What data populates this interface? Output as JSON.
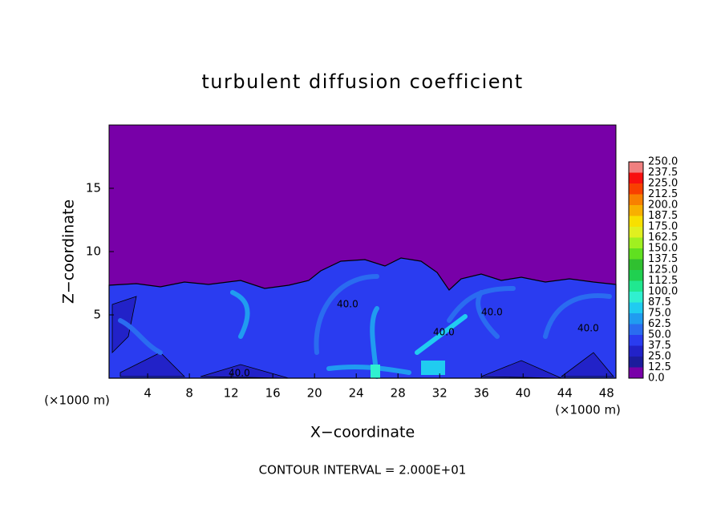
{
  "chart_data": {
    "type": "contour",
    "title": "turbulent diffusion coefficient",
    "xlabel": "X−coordinate",
    "ylabel": "Z−coordinate",
    "xunit": "(×1000 m)",
    "xunit_right": "(×1000 m)",
    "footer": "CONTOUR INTERVAL = 2.000E+01",
    "contour_labels": [
      "40.0",
      "40.0",
      "40.0",
      "40.0",
      "40.0"
    ],
    "xlim": [
      0.3,
      48.9
    ],
    "ylim": [
      0,
      20
    ],
    "xticks": [
      4,
      8,
      12,
      16,
      20,
      24,
      28,
      32,
      36,
      40,
      44,
      48
    ],
    "yticks": [
      5,
      10,
      15
    ],
    "colorbar": {
      "levels": [
        {
          "value": 0,
          "label": "0.0"
        },
        {
          "value": 12.5,
          "label": "12.5"
        },
        {
          "value": 25,
          "label": "25.0"
        },
        {
          "value": 37.5,
          "label": "37.5"
        },
        {
          "value": 50,
          "label": "50.0"
        },
        {
          "value": 62.5,
          "label": "62.5"
        },
        {
          "value": 75,
          "label": "75.0"
        },
        {
          "value": 87.5,
          "label": "87.5"
        },
        {
          "value": 100,
          "label": "100.0"
        },
        {
          "value": 112.5,
          "label": "112.5"
        },
        {
          "value": 125,
          "label": "125.0"
        },
        {
          "value": 137.5,
          "label": "137.5"
        },
        {
          "value": 150,
          "label": "150.0"
        },
        {
          "value": 162.5,
          "label": "162.5"
        },
        {
          "value": 175,
          "label": "175.0"
        },
        {
          "value": 187.5,
          "label": "187.5"
        },
        {
          "value": 200,
          "label": "200.0"
        },
        {
          "value": 212.5,
          "label": "212.5"
        },
        {
          "value": 225,
          "label": "225.0"
        },
        {
          "value": 237.5,
          "label": "237.5"
        },
        {
          "value": 250,
          "label": "250.0"
        }
      ],
      "colors": [
        "#7800a8",
        "#1c1c9c",
        "#2222c8",
        "#2a3cf0",
        "#2a6cf0",
        "#209cf0",
        "#20ccf0",
        "#30f0d0",
        "#20e890",
        "#20d050",
        "#30c030",
        "#60e020",
        "#a0f020",
        "#e0f020",
        "#f8e000",
        "#f8b000",
        "#f88000",
        "#f84000",
        "#f81010",
        "#f08080"
      ]
    }
  }
}
